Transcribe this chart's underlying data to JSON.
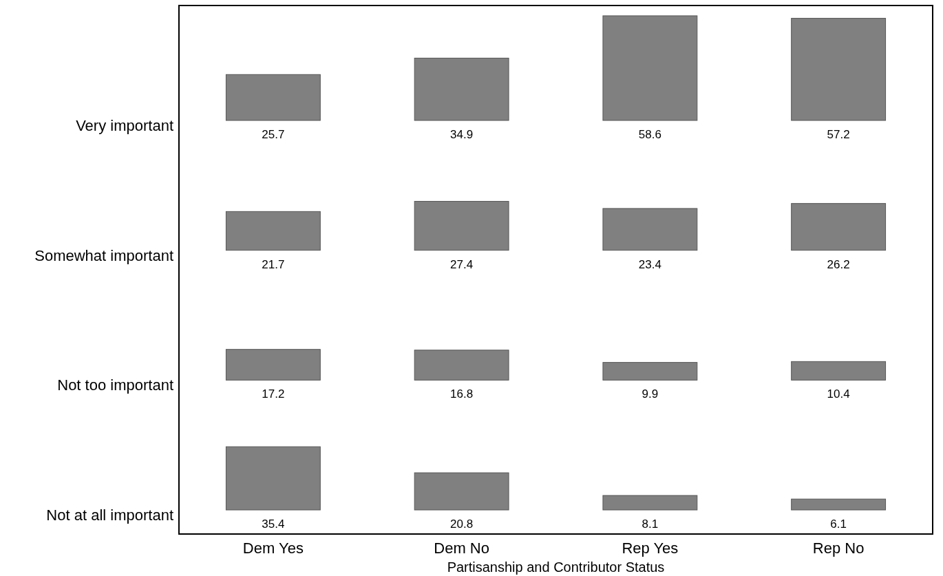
{
  "chart_data": [
    {
      "type": "bar",
      "ylabel": "Very important",
      "categories": [
        "Dem Yes",
        "Dem No",
        "Rep Yes",
        "Rep No"
      ],
      "values": [
        25.7,
        34.9,
        58.6,
        57.2
      ],
      "color": "#808080",
      "data_labels": true,
      "tick_labels": false
    },
    {
      "type": "bar",
      "ylabel": "Somewhat important",
      "categories": [
        "Dem Yes",
        "Dem No",
        "Rep Yes",
        "Rep No"
      ],
      "values": [
        21.7,
        27.4,
        23.4,
        26.2
      ],
      "color": "#808080",
      "data_labels": true,
      "tick_labels": false
    },
    {
      "type": "bar",
      "ylabel": "Not too important",
      "categories": [
        "Dem Yes",
        "Dem No",
        "Rep Yes",
        "Rep No"
      ],
      "values": [
        17.2,
        16.8,
        9.9,
        10.4
      ],
      "color": "#808080",
      "data_labels": true,
      "tick_labels": false
    },
    {
      "type": "bar",
      "ylabel": "Not at all important",
      "xlabel": "Partisanship and Contributor Status",
      "categories": [
        "Dem Yes",
        "Dem No",
        "Rep Yes",
        "Rep No"
      ],
      "values": [
        35.4,
        20.8,
        8.1,
        6.1
      ],
      "color": "#808080",
      "data_labels": true,
      "tick_labels": "x"
    }
  ]
}
